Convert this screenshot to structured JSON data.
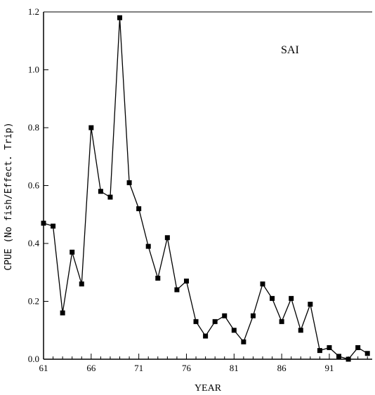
{
  "chart_data": {
    "type": "line",
    "title": "",
    "annotation": "SAI",
    "xlabel": "YEAR",
    "ylabel": "CPUE (No fish/Effect. Trip)",
    "xlim": [
      61,
      95.5
    ],
    "ylim": [
      0,
      1.2
    ],
    "x_ticks": [
      61,
      66,
      71,
      76,
      81,
      86,
      91
    ],
    "x_tick_labels": [
      "61",
      "66",
      "71",
      "76",
      "81",
      "86",
      "91"
    ],
    "y_ticks": [
      0,
      0.2,
      0.4,
      0.6,
      0.8,
      1.0,
      1.2
    ],
    "y_tick_labels": [
      "0.0",
      "0.2",
      "0.4",
      "0.6",
      "0.8",
      "1.0",
      "1.2"
    ],
    "grid": false,
    "marker": "square",
    "series": [
      {
        "x": [
          61,
          62,
          63,
          64,
          65,
          66,
          67,
          68,
          69,
          70,
          71,
          72,
          73,
          74,
          75,
          76,
          77,
          78,
          79,
          80,
          81,
          82,
          83,
          84,
          85,
          86,
          87,
          88,
          89,
          90,
          91,
          92,
          93,
          94,
          95
        ],
        "values": [
          0.47,
          0.46,
          0.16,
          0.37,
          0.26,
          0.8,
          0.58,
          0.56,
          1.18,
          0.61,
          0.52,
          0.39,
          0.28,
          0.42,
          0.24,
          0.27,
          0.13,
          0.08,
          0.13,
          0.15,
          0.1,
          0.06,
          0.15,
          0.26,
          0.21,
          0.13,
          0.21,
          0.1,
          0.19,
          0.03,
          0.04,
          0.01,
          0.0,
          0.04,
          0.02
        ]
      }
    ]
  }
}
